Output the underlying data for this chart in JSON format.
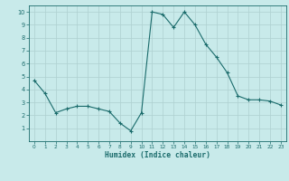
{
  "x": [
    0,
    1,
    2,
    3,
    4,
    5,
    6,
    7,
    8,
    9,
    10,
    11,
    12,
    13,
    14,
    15,
    16,
    17,
    18,
    19,
    20,
    21,
    22,
    23
  ],
  "y": [
    4.7,
    3.7,
    2.2,
    2.5,
    2.7,
    2.7,
    2.5,
    2.3,
    1.4,
    0.8,
    2.2,
    10.0,
    9.8,
    8.8,
    10.0,
    9.0,
    7.5,
    6.5,
    5.3,
    3.5,
    3.2,
    3.2,
    3.1,
    2.8
  ],
  "xlabel": "Humidex (Indice chaleur)",
  "ylim": [
    0,
    10.5
  ],
  "xlim": [
    -0.5,
    23.5
  ],
  "yticks": [
    1,
    2,
    3,
    4,
    5,
    6,
    7,
    8,
    9,
    10
  ],
  "xticks": [
    0,
    1,
    2,
    3,
    4,
    5,
    6,
    7,
    8,
    9,
    10,
    11,
    12,
    13,
    14,
    15,
    16,
    17,
    18,
    19,
    20,
    21,
    22,
    23
  ],
  "line_color": "#1a6b6b",
  "marker_color": "#1a6b6b",
  "bg_color": "#c8eaea",
  "grid_color": "#aed0d0",
  "label_color": "#1a6b6b",
  "tick_color": "#1a6b6b",
  "border_color": "#1a6b6b"
}
